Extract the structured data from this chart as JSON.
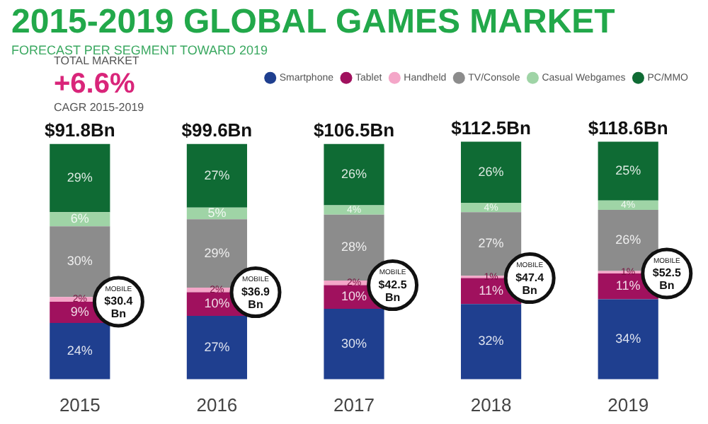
{
  "chart_data": {
    "type": "bar",
    "stacked": true,
    "title": "2015-2019 GLOBAL GAMES MARKET",
    "subtitle": "FORECAST PER SEGMENT TOWARD 2019",
    "categories": [
      "2015",
      "2016",
      "2017",
      "2018",
      "2019"
    ],
    "series": [
      {
        "name": "Smartphone",
        "color": "#1f3f8f",
        "values": [
          24,
          27,
          30,
          32,
          34
        ],
        "value_labels": [
          "24%",
          "27%",
          "30%",
          "32%",
          "34%"
        ]
      },
      {
        "name": "Tablet",
        "color": "#a0115e",
        "values": [
          9,
          10,
          10,
          11,
          11
        ],
        "value_labels": [
          "9%",
          "10%",
          "10%",
          "11%",
          "11%"
        ]
      },
      {
        "name": "Handheld",
        "color": "#f4a6c8",
        "values": [
          2,
          2,
          2,
          1,
          1
        ],
        "value_labels": [
          "2%",
          "2%",
          "2%",
          "1%",
          "1%"
        ]
      },
      {
        "name": "TV/Console",
        "color": "#8c8c8c",
        "values": [
          30,
          29,
          28,
          27,
          26
        ],
        "value_labels": [
          "30%",
          "29%",
          "28%",
          "27%",
          "26%"
        ]
      },
      {
        "name": "Casual Webgames",
        "color": "#9fd4a6",
        "values": [
          6,
          5,
          4,
          4,
          4
        ],
        "value_labels": [
          "6%",
          "5%",
          "4%",
          "4%",
          "4%"
        ]
      },
      {
        "name": "PC/MMO",
        "color": "#0f6b34",
        "values": [
          29,
          27,
          26,
          26,
          25
        ],
        "value_labels": [
          "29%",
          "27%",
          "26%",
          "26%",
          "25%"
        ]
      }
    ],
    "legend": "top right",
    "annotations": [
      "TOTAL MARKET",
      "+6.6%",
      "CAGR 2015-2019",
      {
        "text": "$91.8Bn",
        "x": "2015",
        "y": 100
      },
      {
        "text": "$99.6Bn",
        "x": "2016",
        "y": 100
      },
      {
        "text": "$106.5Bn",
        "x": "2017",
        "y": 100
      },
      {
        "text": "$112.5Bn",
        "x": "2018",
        "y": 101
      },
      {
        "text": "$118.6Bn",
        "x": "2019",
        "y": 101
      },
      {
        "text": "MOBILE\n$30.4\nBn",
        "x": "2015",
        "y": 33
      },
      {
        "text": "MOBILE\n$36.9\nBn",
        "x": "2016",
        "y": 37
      },
      {
        "text": "MOBILE\n$42.5\nBn",
        "x": "2017",
        "y": 40
      },
      {
        "text": "MOBILE\n$47.4\nBn",
        "x": "2018",
        "y": 43
      },
      {
        "text": "MOBILE\n$52.5\nBn",
        "x": "2019",
        "y": 45
      }
    ]
  }
}
